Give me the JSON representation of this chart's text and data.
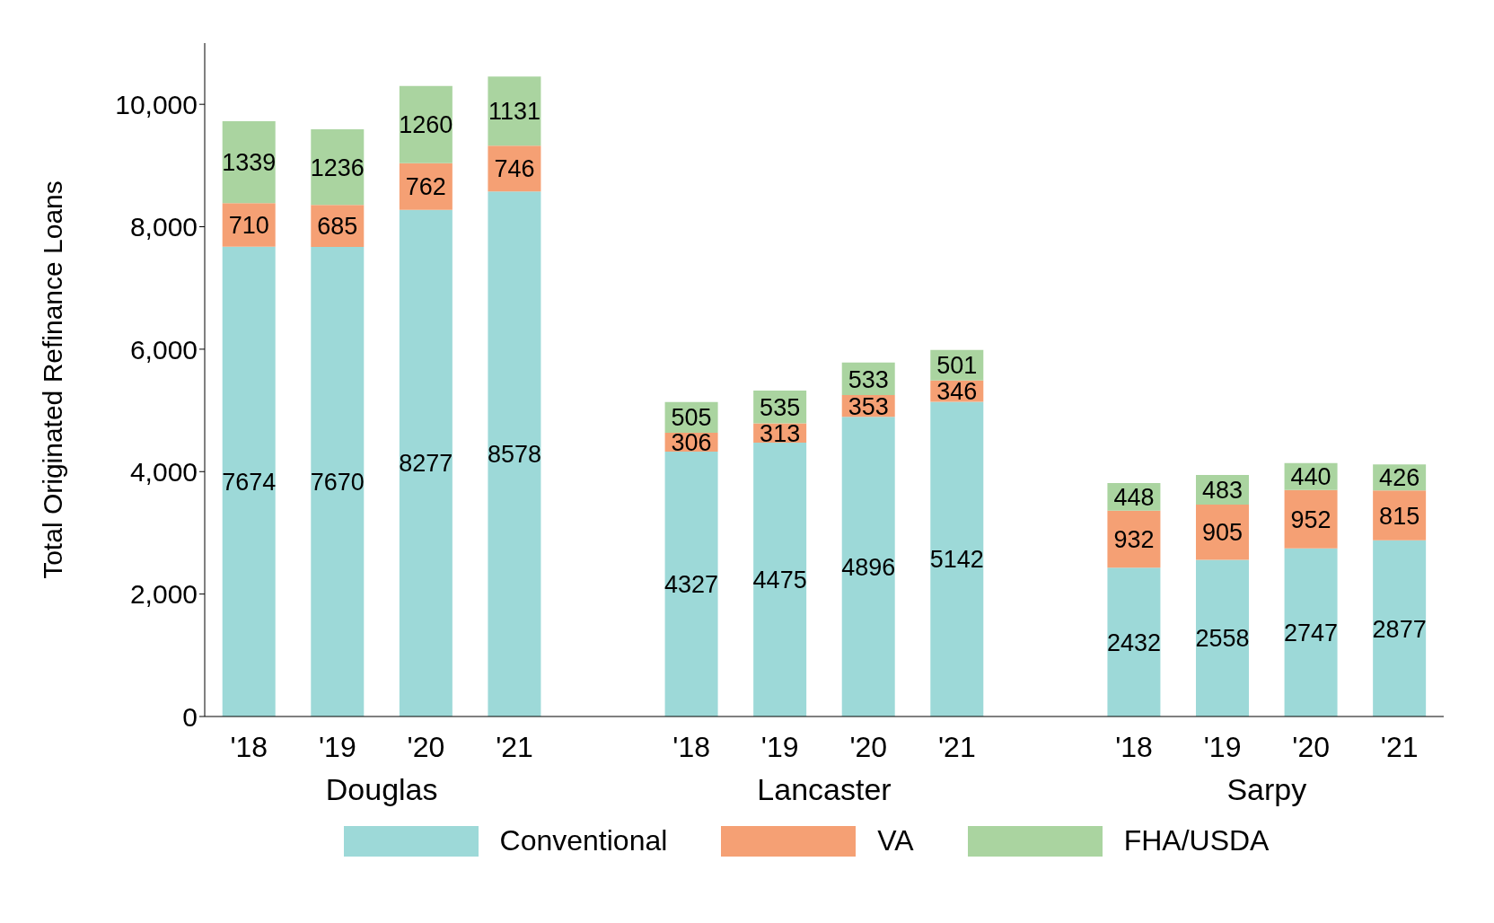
{
  "chart_data": {
    "type": "bar",
    "stacked": true,
    "ylabel": "Total Originated Refinance Loans",
    "categories": [
      "'18",
      "'19",
      "'20",
      "'21",
      null,
      "'18",
      "'19",
      "'20",
      "'21",
      null,
      "'18",
      "'19",
      "'20",
      "'21"
    ],
    "series": [
      {
        "name": "Conventional",
        "color": "#9dd9d8",
        "values": [
          7674,
          7670,
          8277,
          8578,
          null,
          4327,
          4475,
          4896,
          5142,
          null,
          2432,
          2558,
          2747,
          2877
        ]
      },
      {
        "name": "VA",
        "color": "#f5a074",
        "values": [
          710,
          685,
          762,
          746,
          null,
          306,
          313,
          353,
          346,
          null,
          932,
          905,
          952,
          815
        ]
      },
      {
        "name": "FHA/USDA",
        "color": "#aad4a0",
        "values": [
          1339,
          1236,
          1260,
          1131,
          null,
          505,
          535,
          533,
          501,
          null,
          448,
          483,
          440,
          426
        ]
      }
    ],
    "annotations": [
      "Douglas",
      "Lancaster",
      "Sarpy"
    ],
    "ylim": [
      0,
      11000
    ],
    "yticks": [
      0,
      {
        "value": 2000,
        "label": "2,000"
      },
      {
        "value": 4000,
        "label": "4,000"
      },
      {
        "value": 6000,
        "label": "6,000"
      },
      {
        "value": 8000,
        "label": "8,000"
      },
      {
        "value": 10000,
        "label": "10,000"
      }
    ],
    "data_labels": true,
    "grid": false,
    "legend": "bottom"
  }
}
